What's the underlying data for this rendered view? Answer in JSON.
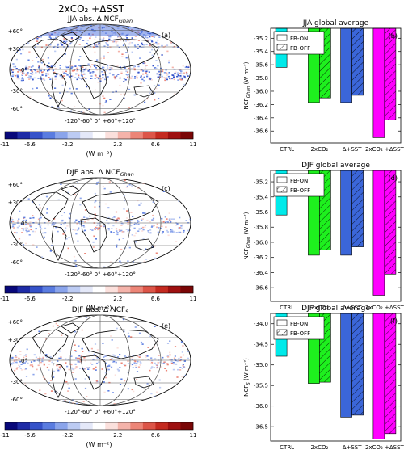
{
  "header": {
    "title": "2xCO₂ +ΔSST"
  },
  "colorbar": {
    "tick_labels": [
      "-11",
      "-6.6",
      "-2.2",
      "2.2",
      "6.6",
      "11"
    ],
    "unit": "(W m⁻²)",
    "colors": [
      "#08087a",
      "#1e2ba6",
      "#3552c9",
      "#5a7ce0",
      "#8aa4eb",
      "#bccbf3",
      "#e4e8f8",
      "#ffffff",
      "#fbe0dc",
      "#f4b3aa",
      "#ec8577",
      "#dc5548",
      "#c42a20",
      "#9e1010",
      "#7a0606"
    ]
  },
  "map_labels": {
    "lat": [
      "+60°",
      "+30°",
      "0°",
      "-30°",
      "-60°"
    ],
    "lon": "-120°-60°   0°   +60°+120°"
  },
  "maps": [
    {
      "title": "JJA abs. Δ NCF",
      "subscript": "Ghan",
      "letter": "(a)"
    },
    {
      "title": "DJF abs. Δ NCF",
      "subscript": "Ghan",
      "letter": "(c)"
    },
    {
      "title": "DJF abs. Δ NCF",
      "subscript": "S",
      "letter": "(e)"
    }
  ],
  "chart_data": [
    {
      "type": "bar",
      "title": "JJA global average",
      "letter": "(b)",
      "ylabel": "NCF",
      "ylabel_sub": "Ghan",
      "ylabel_unit": " (W m⁻²)",
      "categories": [
        "CTRL",
        "2xCO₂",
        "Δ+SST",
        "2xCO₂ +ΔSST"
      ],
      "series": [
        {
          "name": "FB-ON",
          "values": [
            -35.64,
            -36.17,
            -36.17,
            -36.7
          ]
        },
        {
          "name": "FB-OFF",
          "values": [
            null,
            -36.1,
            -36.06,
            -36.43
          ]
        }
      ],
      "ylim": [
        -35.05,
        -36.78
      ],
      "yticks": [
        -35.2,
        -35.4,
        -35.6,
        -35.8,
        -36.0,
        -36.2,
        -36.4,
        -36.6
      ],
      "legend": "top-right"
    },
    {
      "type": "bar",
      "title": "DJF global average",
      "letter": "(d)",
      "ylabel": "NCF",
      "ylabel_sub": "Ghan",
      "ylabel_unit": " (W m⁻²)",
      "categories": [
        "CTRL",
        "2xCO₂",
        "Δ+SST",
        "2xCO₂ +ΔSST"
      ],
      "series": [
        {
          "name": "FB-ON",
          "values": [
            -35.64,
            -36.17,
            -36.17,
            -36.7
          ]
        },
        {
          "name": "FB-OFF",
          "values": [
            null,
            -36.1,
            -36.06,
            -36.42
          ]
        }
      ],
      "ylim": [
        -35.05,
        -36.78
      ],
      "yticks": [
        -35.2,
        -35.4,
        -35.6,
        -35.8,
        -36.0,
        -36.2,
        -36.4,
        -36.6
      ],
      "legend": "top-right"
    },
    {
      "type": "bar",
      "title": "DJF global average",
      "letter": "(f)",
      "ylabel": "NCF",
      "ylabel_sub": "S",
      "ylabel_unit": " (W m⁻²)",
      "categories": [
        "CTRL",
        "2xCO₂",
        "Δ+SST",
        "2xCO₂ +ΔSST"
      ],
      "series": [
        {
          "name": "FB-ON",
          "values": [
            -34.79,
            -35.45,
            -36.27,
            -36.8
          ]
        },
        {
          "name": "FB-OFF",
          "values": [
            null,
            -35.42,
            -36.22,
            -36.67
          ]
        }
      ],
      "ylim": [
        -33.75,
        -36.85
      ],
      "yticks": [
        -34.0,
        -34.5,
        -35.0,
        -35.5,
        -36.0,
        -36.5
      ],
      "legend": "top-right"
    }
  ],
  "bar_colors": [
    "#00eaea",
    "#1ef01e",
    "#3b66d9",
    "#ff00ff"
  ]
}
